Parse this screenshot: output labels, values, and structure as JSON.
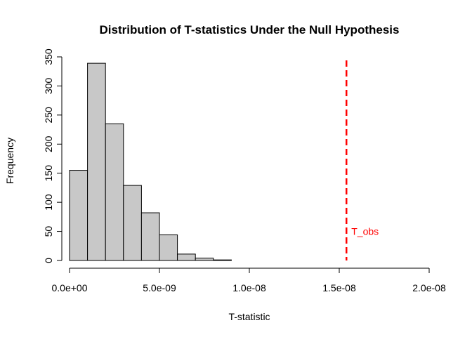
{
  "chart_data": {
    "type": "bar",
    "title": "Distribution of T-statistics Under the Null Hypothesis",
    "xlabel": "T-statistic",
    "ylabel": "Frequency",
    "xlim": [
      0,
      2e-08
    ],
    "ylim": [
      0,
      350
    ],
    "x_ticks": [
      {
        "value": 0,
        "label": "0.0e+00"
      },
      {
        "value": 5e-09,
        "label": "5.0e-09"
      },
      {
        "value": 1e-08,
        "label": "1.0e-08"
      },
      {
        "value": 1.5e-08,
        "label": "1.5e-08"
      },
      {
        "value": 2e-08,
        "label": "2.0e-08"
      }
    ],
    "y_ticks": [
      {
        "value": 0,
        "label": "0"
      },
      {
        "value": 50,
        "label": "50"
      },
      {
        "value": 100,
        "label": "100"
      },
      {
        "value": 150,
        "label": "150"
      },
      {
        "value": 200,
        "label": "200"
      },
      {
        "value": 250,
        "label": "250"
      },
      {
        "value": 300,
        "label": "300"
      },
      {
        "value": 350,
        "label": "350"
      }
    ],
    "bins": [
      {
        "x0": 0,
        "x1": 1e-09,
        "count": 155
      },
      {
        "x0": 1e-09,
        "x1": 2e-09,
        "count": 339
      },
      {
        "x0": 2e-09,
        "x1": 3e-09,
        "count": 235
      },
      {
        "x0": 3e-09,
        "x1": 4e-09,
        "count": 129
      },
      {
        "x0": 4e-09,
        "x1": 5e-09,
        "count": 82
      },
      {
        "x0": 5e-09,
        "x1": 6e-09,
        "count": 44
      },
      {
        "x0": 6e-09,
        "x1": 7e-09,
        "count": 11
      },
      {
        "x0": 7e-09,
        "x1": 8e-09,
        "count": 4
      },
      {
        "x0": 8e-09,
        "x1": 9e-09,
        "count": 1
      }
    ],
    "bar_fill": "#c8c8c8",
    "bar_stroke": "#000000",
    "grid": false,
    "reference_line": {
      "x": 1.54e-08,
      "label": "T_obs",
      "label_y": 50,
      "color": "#ff0000",
      "style": "dashed"
    }
  }
}
